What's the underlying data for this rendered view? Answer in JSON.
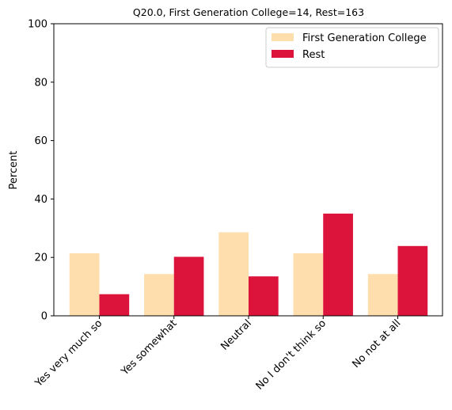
{
  "chart_data": {
    "type": "bar",
    "title": "Q20.0, First Generation College=14, Rest=163",
    "xlabel": "",
    "ylabel": "Percent",
    "ylim": [
      0,
      100
    ],
    "yticks": [
      0,
      20,
      40,
      60,
      80,
      100
    ],
    "categories": [
      "Yes very much so",
      "Yes somewhat",
      "Neutral",
      "No I don't think so",
      "No not at all"
    ],
    "series": [
      {
        "name": "First Generation College",
        "color": "#ffdead",
        "values": [
          21.4,
          14.3,
          28.6,
          21.4,
          14.3
        ]
      },
      {
        "name": "Rest",
        "color": "#dc143c",
        "values": [
          7.4,
          20.2,
          13.5,
          35.0,
          23.9
        ]
      }
    ],
    "legend_position": "top-right",
    "grid": false
  }
}
